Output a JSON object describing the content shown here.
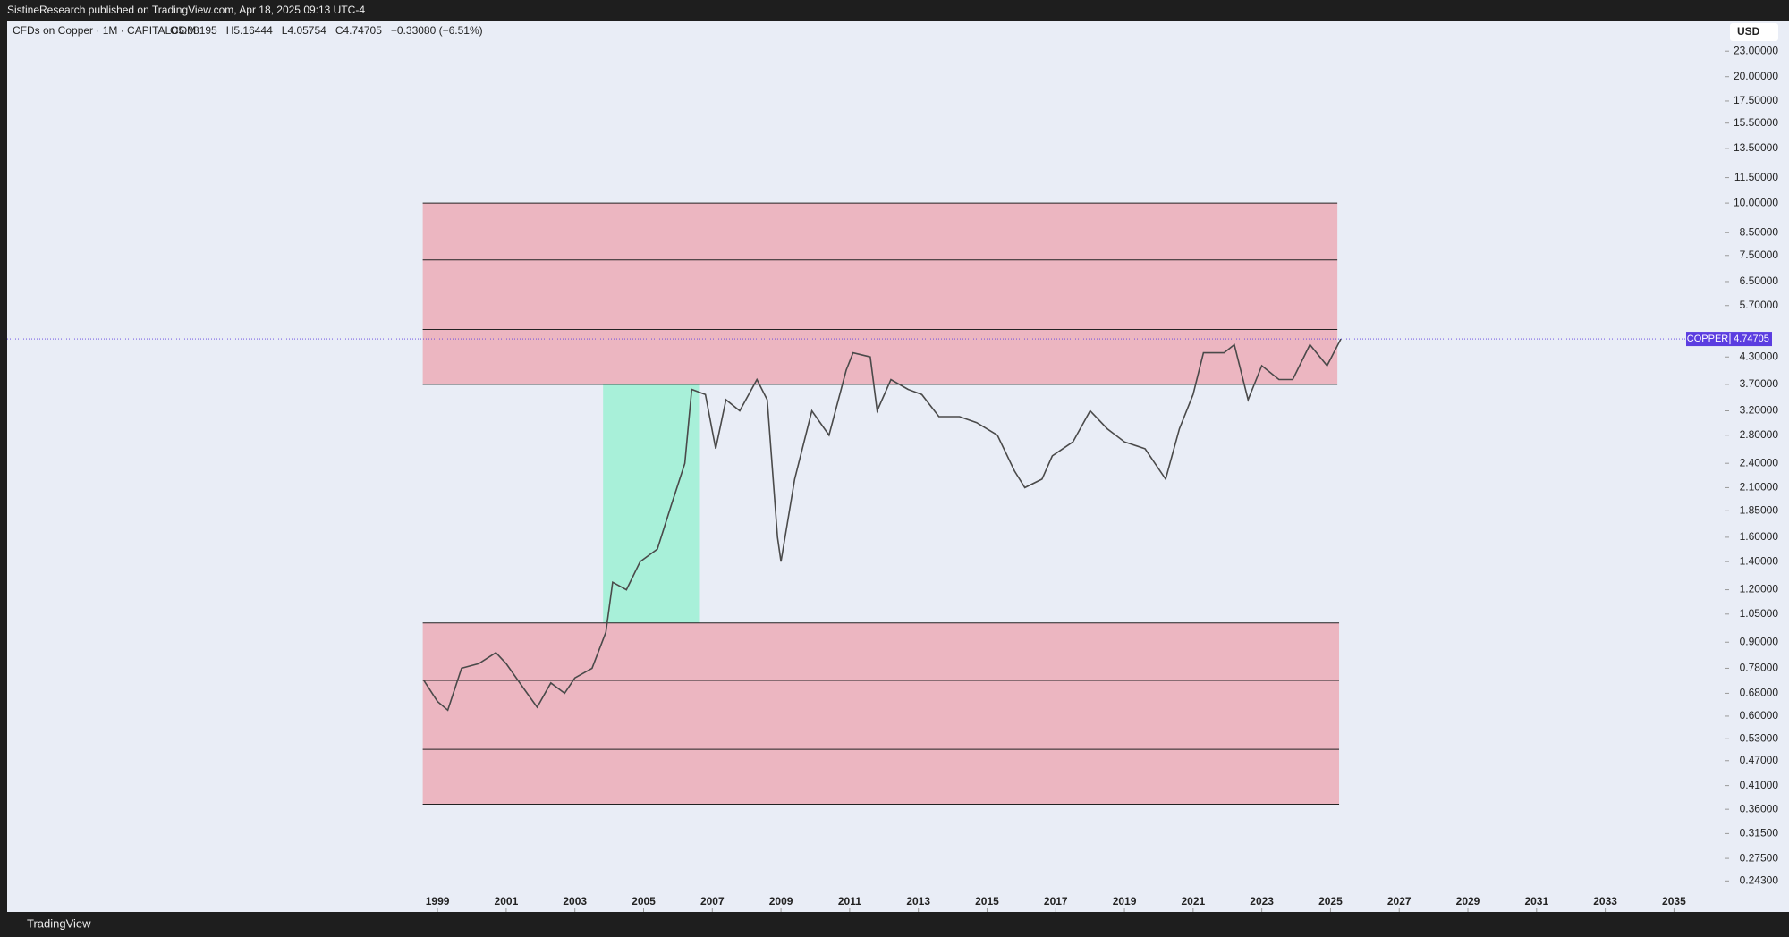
{
  "header": {
    "publisher": "SistineResearch published on TradingView.com, Apr 18, 2025 09:13 UTC-4",
    "brand": "TradingView"
  },
  "chart_data": {
    "type": "line",
    "symbol": "CFDs on Copper · 1M · CAPITALCOM",
    "ohlc": [
      "O5.08195",
      "H5.16444",
      "L4.05754",
      "C4.74705",
      "−0.33080 (−6.51%)"
    ],
    "currency": "USD",
    "price_label": "COPPER",
    "last_price": 4.74705,
    "log_scale": true,
    "color": "#4a4a4a",
    "x": [
      1998.6,
      1999.0,
      1999.3,
      1999.7,
      2000.2,
      2000.7,
      2001.0,
      2001.5,
      2001.9,
      2002.3,
      2002.7,
      2003.0,
      2003.5,
      2003.9,
      2004.1,
      2004.5,
      2004.9,
      2005.4,
      2005.8,
      2006.2,
      2006.4,
      2006.8,
      2007.1,
      2007.4,
      2007.8,
      2008.3,
      2008.6,
      2008.9,
      2009.0,
      2009.4,
      2009.9,
      2010.4,
      2010.9,
      2011.1,
      2011.6,
      2011.8,
      2012.2,
      2012.7,
      2013.1,
      2013.6,
      2014.2,
      2014.7,
      2015.3,
      2015.8,
      2016.1,
      2016.6,
      2016.9,
      2017.5,
      2018.0,
      2018.5,
      2019.0,
      2019.6,
      2020.2,
      2020.6,
      2021.0,
      2021.3,
      2021.9,
      2022.2,
      2022.6,
      2023.0,
      2023.5,
      2023.9,
      2024.4,
      2024.9,
      2025.3
    ],
    "values": [
      0.73,
      0.65,
      0.62,
      0.78,
      0.8,
      0.85,
      0.8,
      0.7,
      0.63,
      0.72,
      0.68,
      0.74,
      0.78,
      0.95,
      1.25,
      1.2,
      1.4,
      1.5,
      1.9,
      2.4,
      3.6,
      3.5,
      2.6,
      3.4,
      3.2,
      3.8,
      3.4,
      1.6,
      1.4,
      2.2,
      3.2,
      2.8,
      4.0,
      4.4,
      4.3,
      3.2,
      3.8,
      3.6,
      3.5,
      3.1,
      3.1,
      3.0,
      2.8,
      2.3,
      2.1,
      2.2,
      2.5,
      2.7,
      3.2,
      2.9,
      2.7,
      2.6,
      2.2,
      2.9,
      3.5,
      4.4,
      4.4,
      4.6,
      3.4,
      4.1,
      3.8,
      3.8,
      4.6,
      4.1,
      4.747
    ],
    "zones": [
      {
        "x": [
          1998.57,
          2025.2
        ],
        "y": [
          3.7,
          10
        ],
        "color": "#ecb6c1"
      },
      {
        "x": [
          1998.57,
          2025.25
        ],
        "y": [
          0.37,
          1.0
        ],
        "color": "#ecb6c1"
      },
      {
        "x": [
          2003.82,
          2006.64
        ],
        "y": [
          1.0,
          3.7
        ],
        "color": "#a8f0d9"
      }
    ],
    "levels": [
      {
        "x": [
          1998.57,
          2025.2
        ],
        "value": 10
      },
      {
        "x": [
          1998.57,
          2025.2
        ],
        "value": 7.32
      },
      {
        "x": [
          1998.57,
          2025.2
        ],
        "value": 5.0
      },
      {
        "x": [
          1998.57,
          2025.2
        ],
        "value": 3.7
      },
      {
        "x": [
          1998.57,
          2025.25
        ],
        "value": 1.0
      },
      {
        "x": [
          1998.57,
          2025.25
        ],
        "value": 0.73
      },
      {
        "x": [
          1998.57,
          2025.25
        ],
        "value": 0.5
      },
      {
        "x": [
          1998.57,
          2025.25
        ],
        "value": 0.37
      }
    ],
    "xlim": [
      1986.47,
      2036.5
    ],
    "xticks": [
      1999,
      2001,
      2003,
      2005,
      2007,
      2009,
      2011,
      2013,
      2015,
      2017,
      2019,
      2021,
      2023,
      2025,
      2027,
      2029,
      2031,
      2033,
      2035
    ],
    "ylim": [
      0.205,
      27.2
    ],
    "yticks": [
      {
        "value": 23,
        "label": "23.00000"
      },
      {
        "value": 20,
        "label": "20.00000"
      },
      {
        "value": 17.5,
        "label": "17.50000"
      },
      {
        "value": 15.5,
        "label": "15.50000"
      },
      {
        "value": 13.5,
        "label": "13.50000"
      },
      {
        "value": 11.5,
        "label": "11.50000"
      },
      {
        "value": 10,
        "label": "10.00000"
      },
      {
        "value": 8.5,
        "label": "8.50000"
      },
      {
        "value": 7.5,
        "label": "7.50000"
      },
      {
        "value": 6.5,
        "label": "6.50000"
      },
      {
        "value": 5.7,
        "label": "5.70000"
      },
      {
        "value": 4.3,
        "label": "4.30000"
      },
      {
        "value": 3.7,
        "label": "3.70000"
      },
      {
        "value": 3.2,
        "label": "3.20000"
      },
      {
        "value": 2.8,
        "label": "2.80000"
      },
      {
        "value": 2.4,
        "label": "2.40000"
      },
      {
        "value": 2.1,
        "label": "2.10000"
      },
      {
        "value": 1.85,
        "label": "1.85000"
      },
      {
        "value": 1.6,
        "label": "1.60000"
      },
      {
        "value": 1.4,
        "label": "1.40000"
      },
      {
        "value": 1.2,
        "label": "1.20000"
      },
      {
        "value": 1.05,
        "label": "1.05000"
      },
      {
        "value": 0.9,
        "label": "0.90000"
      },
      {
        "value": 0.78,
        "label": "0.78000"
      },
      {
        "value": 0.68,
        "label": "0.68000"
      },
      {
        "value": 0.6,
        "label": "0.60000"
      },
      {
        "value": 0.53,
        "label": "0.53000"
      },
      {
        "value": 0.47,
        "label": "0.47000"
      },
      {
        "value": 0.41,
        "label": "0.41000"
      },
      {
        "value": 0.36,
        "label": "0.36000"
      },
      {
        "value": 0.315,
        "label": "0.31500"
      },
      {
        "value": 0.275,
        "label": "0.27500"
      },
      {
        "value": 0.243,
        "label": "0.24300"
      }
    ]
  }
}
